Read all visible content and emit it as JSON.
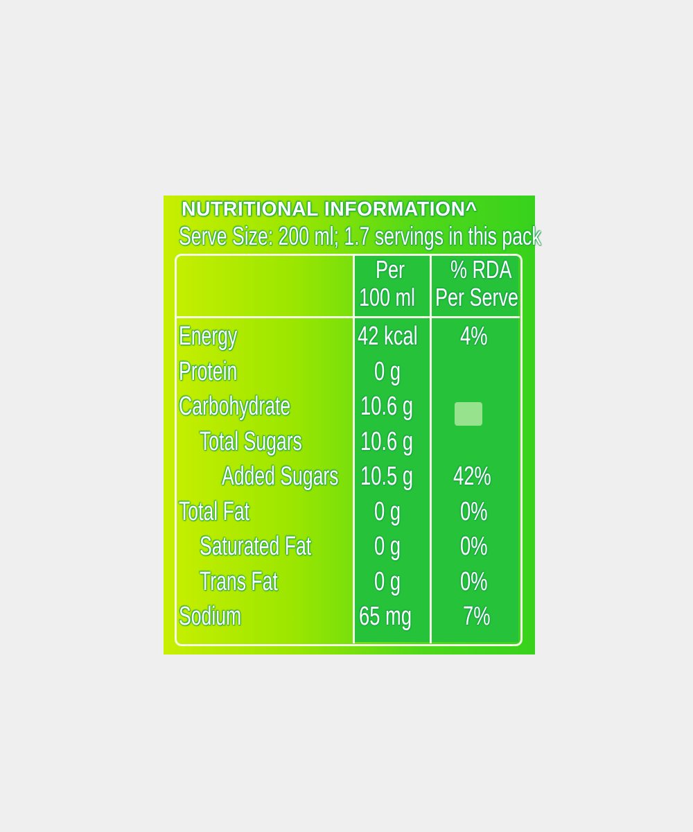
{
  "title": "NUTRITIONAL INFORMATION^",
  "serve_size": "Serve Size: 200 ml; 1.7 servings in this pack",
  "columns": {
    "per_100ml_line1": "Per",
    "per_100ml_line2": "100 ml",
    "rda_line1": "% RDA",
    "rda_line2": "Per Serve"
  },
  "rows": [
    {
      "name": "Energy",
      "value": "42 kcal",
      "rda": "4%"
    },
    {
      "name": "Protein",
      "value": "0 g",
      "rda": ""
    },
    {
      "name": "Carbohydrate",
      "value": "10.6 g",
      "rda": ""
    },
    {
      "name": "Total Sugars",
      "value": "10.6 g",
      "rda": ""
    },
    {
      "name": "Added Sugars",
      "value": "10.5 g",
      "rda": "42%"
    },
    {
      "name": "Total Fat",
      "value": "0 g",
      "rda": "0%"
    },
    {
      "name": "Saturated Fat",
      "value": "0 g",
      "rda": "0%"
    },
    {
      "name": "Trans Fat",
      "value": "0 g",
      "rda": "0%"
    },
    {
      "name": "Sodium",
      "value": "65 mg",
      "rda": "7%"
    }
  ],
  "colors": {
    "background": "#efefef",
    "label_left": "#c9ef00",
    "label_right": "#37d21c",
    "text": "#ffffff",
    "outline": "#19a84a"
  }
}
